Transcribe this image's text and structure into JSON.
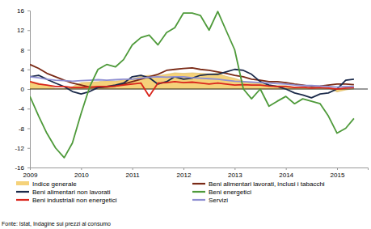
{
  "chart_data": {
    "type": "line",
    "source": "Fonte: Istat, Indagine sui prezzi al consumo",
    "x": [
      2009,
      2009.17,
      2009.33,
      2009.5,
      2009.67,
      2009.83,
      2010,
      2010.17,
      2010.33,
      2010.5,
      2010.67,
      2010.83,
      2011,
      2011.17,
      2011.33,
      2011.5,
      2011.67,
      2011.83,
      2012,
      2012.17,
      2012.33,
      2012.5,
      2012.67,
      2012.83,
      2013,
      2013.17,
      2013.33,
      2013.5,
      2013.67,
      2013.83,
      2014,
      2014.17,
      2014.33,
      2014.5,
      2014.67,
      2014.83,
      2015,
      2015.17,
      2015.33
    ],
    "xlim": [
      2009,
      2015.6
    ],
    "xticks": [
      2009,
      2010,
      2011,
      2012,
      2013,
      2014,
      2015
    ],
    "ylim": [
      -16,
      16
    ],
    "yticks": [
      -16,
      -12,
      -8,
      -4,
      0,
      4,
      8,
      12,
      16
    ],
    "grid": false,
    "legend": "bottom",
    "series": [
      {
        "name": "Indice generale",
        "type": "area",
        "color": "#f5d27a",
        "values": [
          1.6,
          1.2,
          0.8,
          0.1,
          0.1,
          0.5,
          1.3,
          1.4,
          1.5,
          1.7,
          1.6,
          1.8,
          2.1,
          2.6,
          2.8,
          2.7,
          3.0,
          3.3,
          3.2,
          3.3,
          3.2,
          3.1,
          3.2,
          2.6,
          2.2,
          1.6,
          1.2,
          1.2,
          0.8,
          0.7,
          0.7,
          0.4,
          0.4,
          0.1,
          0.1,
          0.2,
          -0.6,
          -0.2,
          0.1
        ]
      },
      {
        "name": "Beni alimentari lavorati, inclusi i tabacchi",
        "color": "#7a2a16",
        "values": [
          5.0,
          4.2,
          3.2,
          2.5,
          1.8,
          1.2,
          0.8,
          0.4,
          0.3,
          0.4,
          0.6,
          1.0,
          1.5,
          2.0,
          2.5,
          3.0,
          3.8,
          4.0,
          4.2,
          4.3,
          4.0,
          3.8,
          3.5,
          3.2,
          2.8,
          2.5,
          2.0,
          1.8,
          1.5,
          1.5,
          1.3,
          1.0,
          0.8,
          0.5,
          0.6,
          0.8,
          1.0,
          1.0,
          0.9
        ]
      },
      {
        "name": "Beni alimentari non lavorati",
        "color": "#1b2a4a",
        "values": [
          2.5,
          2.8,
          2.0,
          1.2,
          0.5,
          -0.5,
          -1.0,
          -0.5,
          0.3,
          0.5,
          0.8,
          1.2,
          2.5,
          2.8,
          2.3,
          1.0,
          1.5,
          2.5,
          2.0,
          2.2,
          2.8,
          3.0,
          3.0,
          3.5,
          4.0,
          3.8,
          3.0,
          1.5,
          0.8,
          0.5,
          0.0,
          -0.8,
          -1.2,
          -1.8,
          -1.0,
          -0.8,
          0.0,
          1.8,
          2.0
        ]
      },
      {
        "name": "Beni energetici",
        "color": "#4e9a3a",
        "values": [
          -1.5,
          -5.5,
          -9.0,
          -12.0,
          -14.0,
          -11.0,
          -5.0,
          0.5,
          4.0,
          5.0,
          4.5,
          6.0,
          9.0,
          10.5,
          11.0,
          9.0,
          11.5,
          12.5,
          15.5,
          15.5,
          15.0,
          12.0,
          15.8,
          12.0,
          8.0,
          0.0,
          -2.0,
          0.0,
          -3.5,
          -2.5,
          -1.5,
          -3.0,
          -2.0,
          -2.5,
          -3.0,
          -5.5,
          -9.0,
          -8.0,
          -6.0
        ]
      },
      {
        "name": "Beni industriali non energetici",
        "color": "#d9251c",
        "values": [
          1.5,
          1.0,
          0.8,
          0.5,
          0.5,
          0.3,
          0.3,
          0.4,
          0.5,
          0.5,
          0.6,
          0.8,
          1.0,
          1.2,
          -1.5,
          1.2,
          1.3,
          1.5,
          1.3,
          1.4,
          1.2,
          1.0,
          1.2,
          1.0,
          0.8,
          0.9,
          0.8,
          0.8,
          0.6,
          0.5,
          0.5,
          0.3,
          0.4,
          0.2,
          0.3,
          0.2,
          0.0,
          0.2,
          0.3
        ]
      },
      {
        "name": "Servizi",
        "color": "#8f8fd2",
        "values": [
          2.5,
          2.3,
          2.0,
          1.8,
          1.7,
          1.6,
          1.7,
          1.8,
          1.9,
          1.8,
          1.9,
          2.0,
          2.0,
          2.2,
          2.4,
          2.5,
          2.4,
          2.5,
          2.5,
          2.3,
          2.2,
          2.1,
          2.0,
          1.8,
          1.6,
          1.5,
          1.4,
          1.3,
          1.2,
          1.1,
          1.0,
          0.8,
          0.7,
          0.7,
          0.6,
          0.5,
          0.4,
          0.5,
          0.5
        ]
      }
    ]
  }
}
